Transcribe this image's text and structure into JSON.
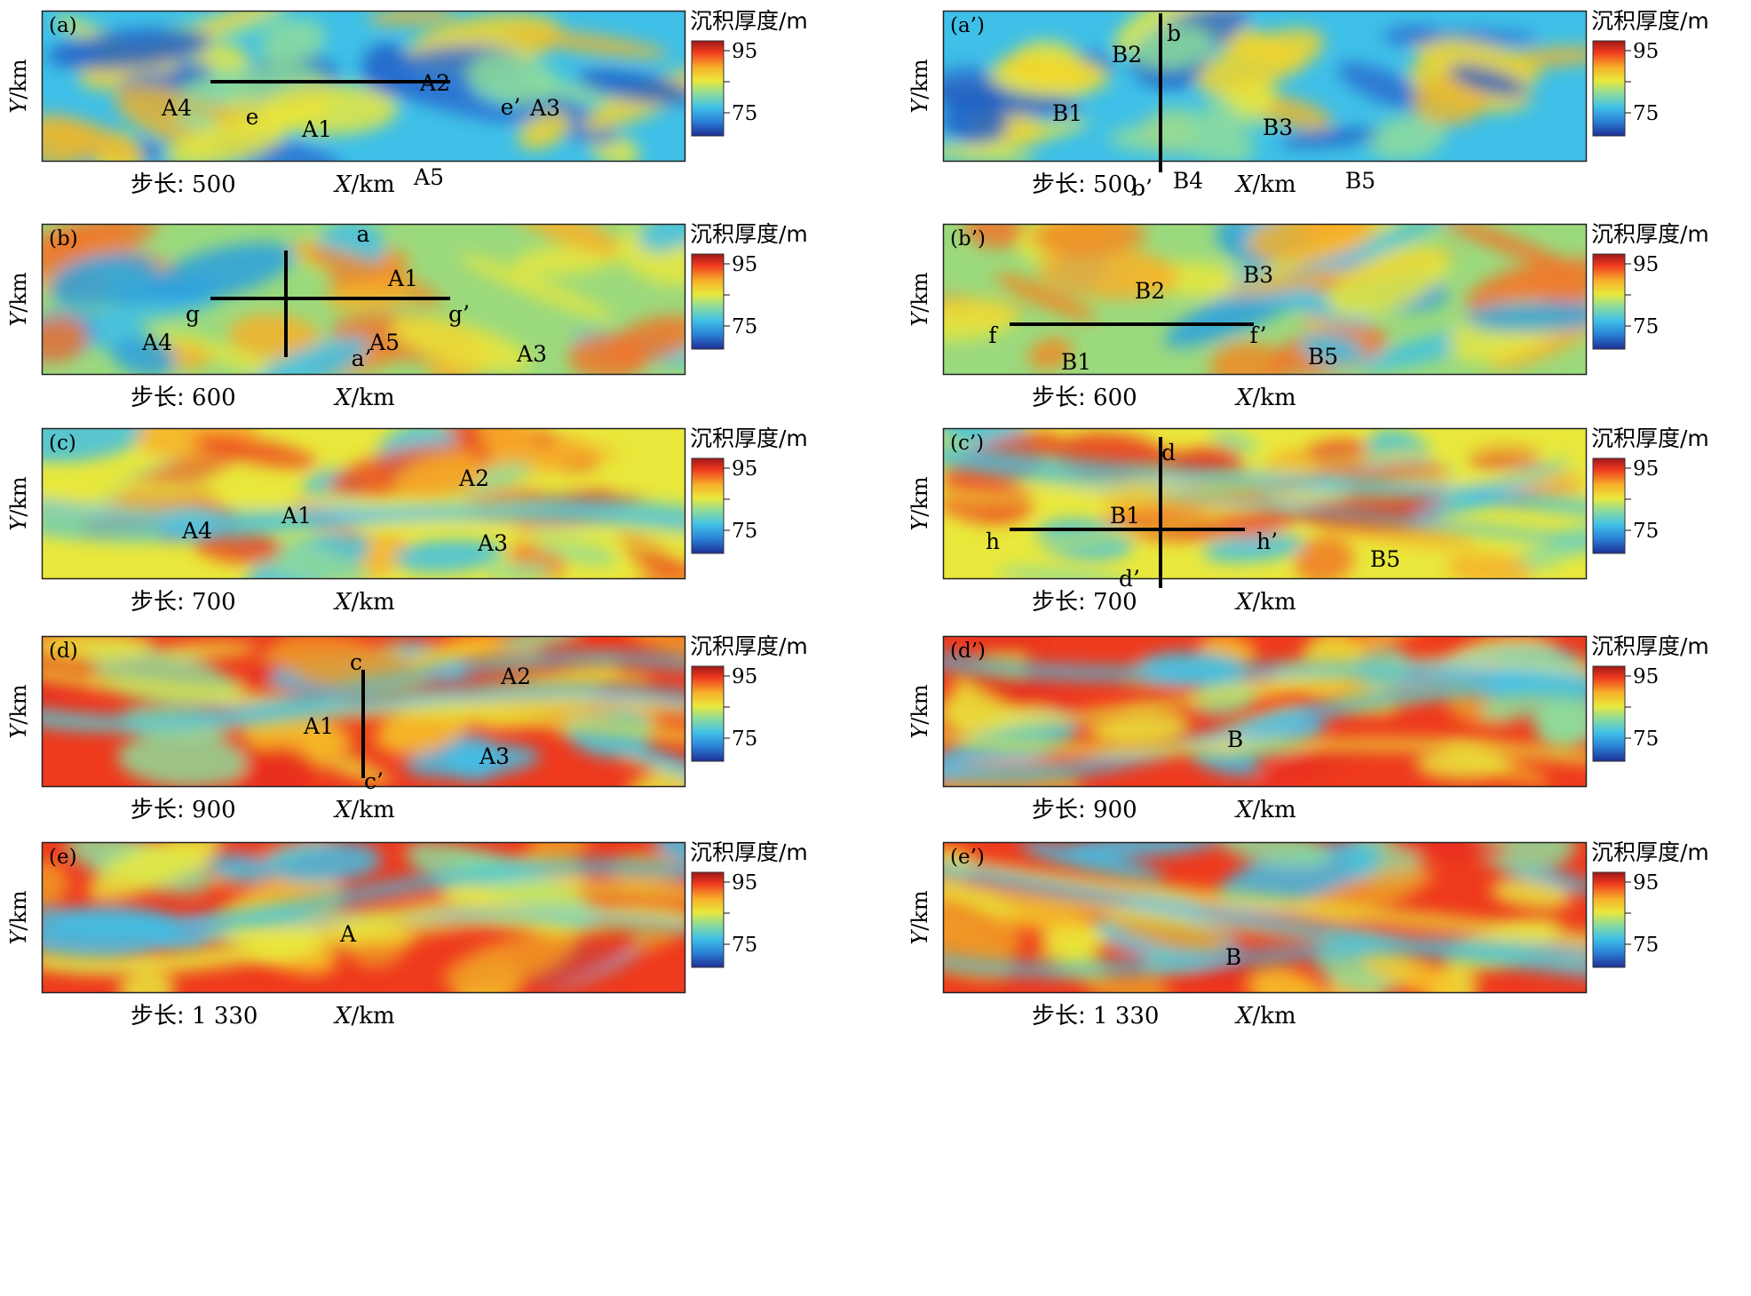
{
  "colorbar": {
    "title": "沉积厚度/m",
    "tick_high": "95",
    "tick_low": "75",
    "colors": [
      "#1e2f95",
      "#2a7fd6",
      "#3fc0e8",
      "#8fdc9a",
      "#e9e83c",
      "#f7b02a",
      "#ef3a1e",
      "#a01818"
    ]
  },
  "axis_labels": {
    "x_var": "X",
    "y_var": "Y",
    "unit": "/km"
  },
  "step_prefix": "步长: ",
  "panels": [
    {
      "id": "(a)",
      "step": "500",
      "scheme": "blue",
      "labels": [
        "A4",
        "e",
        "A1",
        "A2",
        "e’",
        "A3",
        "A5"
      ]
    },
    {
      "id": "(a’)",
      "step": "500",
      "scheme": "blue",
      "labels": [
        "B2",
        "b",
        "B1",
        "B3",
        "b’",
        "B4",
        "B5"
      ]
    },
    {
      "id": "(b)",
      "step": "600",
      "scheme": "mid",
      "labels": [
        "a",
        "A1",
        "g",
        "g’",
        "A4",
        "A5",
        "A3",
        "a’"
      ]
    },
    {
      "id": "(b’)",
      "step": "600",
      "scheme": "mid",
      "labels": [
        "B3",
        "B2",
        "f",
        "f’",
        "B1",
        "B5"
      ]
    },
    {
      "id": "(c)",
      "step": "700",
      "scheme": "warm",
      "labels": [
        "A2",
        "A1",
        "A4",
        "A3"
      ]
    },
    {
      "id": "(c’)",
      "step": "700",
      "scheme": "warm",
      "labels": [
        "d",
        "B1",
        "h",
        "h’",
        "d’",
        "B5"
      ]
    },
    {
      "id": "(d)",
      "step": "900",
      "scheme": "hot",
      "labels": [
        "c",
        "A2",
        "A1",
        "A3",
        "c’"
      ]
    },
    {
      "id": "(d’)",
      "step": "900",
      "scheme": "hot",
      "labels": [
        "B"
      ]
    },
    {
      "id": "(e)",
      "step": "1 330",
      "scheme": "hot",
      "labels": [
        "A"
      ]
    },
    {
      "id": "(e’)",
      "step": "1 330",
      "scheme": "hot",
      "labels": [
        "B"
      ]
    }
  ]
}
